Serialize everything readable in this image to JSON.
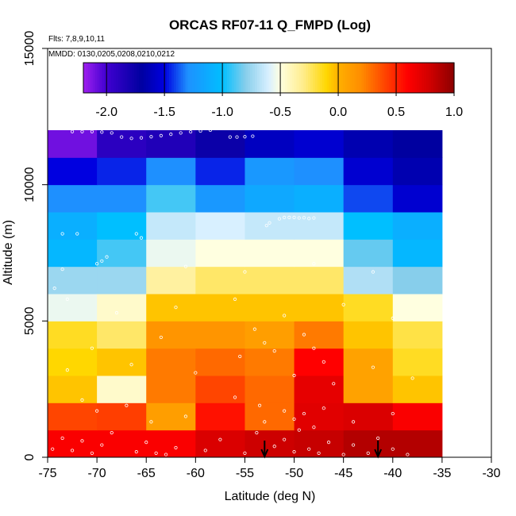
{
  "chart_data": {
    "type": "heatmap",
    "title": "ORCAS RF07-11 Q_FMPD (Log)",
    "flights_note": "Flts: 7,8,9,10,11",
    "dates_note": "MMDD: 0130,0205,0208,0210,0212",
    "xlabel": "Latitude (deg N)",
    "ylabel": "Altitude (m)",
    "xlim": [
      -75,
      -30
    ],
    "ylim": [
      0,
      15000
    ],
    "x_ticks": [
      -75,
      -70,
      -65,
      -60,
      -55,
      -50,
      -45,
      -40,
      -35,
      -30
    ],
    "x_tick_labels": [
      "-75",
      "-70",
      "-65",
      "-60",
      "-55",
      "-50",
      "-45",
      "-40",
      "-35",
      "-30"
    ],
    "y_ticks": [
      0,
      5000,
      10000,
      15000
    ],
    "y_tick_labels": [
      "0",
      "5000",
      "10000",
      "15000"
    ],
    "colorbar": {
      "min": -2.2,
      "max": 1.0,
      "ticks": [
        -2.0,
        -1.5,
        -1.0,
        -0.5,
        0.0,
        0.5,
        1.0
      ],
      "tick_labels": [
        "-2.0",
        "-1.5",
        "-1.0",
        "-0.5",
        "0.0",
        "0.5",
        "1.0"
      ],
      "color_stops": [
        {
          "v": -2.2,
          "c": "#a020f0"
        },
        {
          "v": -2.0,
          "c": "#4000d0"
        },
        {
          "v": -1.7,
          "c": "#0000a0"
        },
        {
          "v": -1.5,
          "c": "#0000e0"
        },
        {
          "v": -1.3,
          "c": "#1e90ff"
        },
        {
          "v": -1.0,
          "c": "#00bfff"
        },
        {
          "v": -0.8,
          "c": "#87ceeb"
        },
        {
          "v": -0.6,
          "c": "#d8f0ff"
        },
        {
          "v": -0.5,
          "c": "#ffffe0"
        },
        {
          "v": -0.3,
          "c": "#ffec8b"
        },
        {
          "v": -0.1,
          "c": "#ffd700"
        },
        {
          "v": 0.0,
          "c": "#ffb000"
        },
        {
          "v": 0.2,
          "c": "#ff8c00"
        },
        {
          "v": 0.4,
          "c": "#ff4500"
        },
        {
          "v": 0.6,
          "c": "#ff0000"
        },
        {
          "v": 0.8,
          "c": "#cd0000"
        },
        {
          "v": 1.0,
          "c": "#8b0000"
        }
      ]
    },
    "lat_bins": [
      -75,
      -70,
      -65,
      -60,
      -55,
      -50,
      -45,
      -40,
      -35
    ],
    "alt_bins": [
      0,
      1000,
      2000,
      3000,
      4000,
      5000,
      6000,
      7000,
      8000,
      9000,
      10000,
      11000,
      12000
    ],
    "cells": [
      [
        0.62,
        0.62,
        0.62,
        0.75,
        0.8,
        0.82,
        0.88,
        0.88
      ],
      [
        0.4,
        0.42,
        0.1,
        0.55,
        0.3,
        0.72,
        0.75,
        0.62
      ],
      [
        -0.05,
        -0.45,
        0.25,
        0.4,
        0.3,
        0.7,
        0.08,
        -0.05
      ],
      [
        -0.1,
        -0.05,
        0.25,
        0.3,
        0.25,
        0.6,
        0.08,
        -0.15
      ],
      [
        -0.15,
        -0.25,
        0.15,
        0.15,
        0.1,
        0.25,
        -0.05,
        -0.2
      ],
      [
        -0.55,
        -0.45,
        -0.05,
        -0.05,
        -0.05,
        -0.05,
        -0.15,
        -0.5
      ],
      [
        -0.75,
        -0.75,
        -0.35,
        -0.25,
        -0.25,
        -0.25,
        -0.7,
        -0.8
      ],
      [
        -1.05,
        -0.9,
        -0.55,
        -0.5,
        -0.5,
        -0.5,
        -0.85,
        -1.05
      ],
      [
        -1.1,
        -1.0,
        -0.65,
        -0.6,
        -0.65,
        -0.65,
        -1.0,
        -1.1
      ],
      [
        -1.3,
        -1.3,
        -0.9,
        -1.25,
        -1.15,
        -1.1,
        -1.4,
        -1.55
      ],
      [
        -1.5,
        -1.45,
        -1.3,
        -1.45,
        -1.25,
        -1.3,
        -1.55,
        -1.65
      ],
      [
        -2.1,
        -1.9,
        -1.85,
        -1.75,
        -1.6,
        -1.55,
        -1.65,
        -1.7
      ]
    ],
    "arrows_lat": [
      -53,
      -41.5
    ],
    "flight_track": [
      [
        -72.5,
        11950
      ],
      [
        -71.5,
        11950
      ],
      [
        -70.5,
        11950
      ],
      [
        -69.5,
        11930
      ],
      [
        -68.5,
        11900
      ],
      [
        -67.5,
        11750
      ],
      [
        -66.5,
        11700
      ],
      [
        -65.5,
        11720
      ],
      [
        -64.5,
        11760
      ],
      [
        -63.5,
        11800
      ],
      [
        -62.5,
        11850
      ],
      [
        -61.5,
        11900
      ],
      [
        -60.5,
        11940
      ],
      [
        -59.5,
        11970
      ],
      [
        -58.5,
        12000
      ],
      [
        -56.5,
        11750
      ],
      [
        -55.8,
        11750
      ],
      [
        -55,
        11760
      ],
      [
        -54.2,
        11780
      ],
      [
        -51.5,
        8750
      ],
      [
        -51,
        8800
      ],
      [
        -50.5,
        8800
      ],
      [
        -50,
        8800
      ],
      [
        -49.5,
        8780
      ],
      [
        -49,
        8790
      ],
      [
        -48.5,
        8760
      ],
      [
        -48,
        8780
      ],
      [
        -52.5,
        8600
      ],
      [
        -52.8,
        8500
      ],
      [
        -72,
        8200
      ],
      [
        -73.5,
        8200
      ],
      [
        -66,
        8200
      ],
      [
        -65.5,
        8050
      ],
      [
        -70,
        7100
      ],
      [
        -69.5,
        7200
      ],
      [
        -69,
        7350
      ],
      [
        -74.3,
        6200
      ],
      [
        -73.5,
        6900
      ],
      [
        -61,
        7000
      ],
      [
        -55,
        6800
      ],
      [
        -48,
        7100
      ],
      [
        -42,
        6800
      ],
      [
        -73,
        5800
      ],
      [
        -68,
        5300
      ],
      [
        -62,
        5500
      ],
      [
        -56,
        5800
      ],
      [
        -51,
        5200
      ],
      [
        -45,
        5600
      ],
      [
        -40,
        5100
      ],
      [
        -70.5,
        4000
      ],
      [
        -63.5,
        4400
      ],
      [
        -54,
        4700
      ],
      [
        -53,
        4200
      ],
      [
        -52,
        3900
      ],
      [
        -49,
        4500
      ],
      [
        -48,
        4000
      ],
      [
        -47,
        3500
      ],
      [
        -73,
        3200
      ],
      [
        -66.5,
        3400
      ],
      [
        -60,
        3100
      ],
      [
        -55.5,
        3700
      ],
      [
        -50,
        3000
      ],
      [
        -46,
        2700
      ],
      [
        -42,
        3300
      ],
      [
        -38,
        2900
      ],
      [
        -71.5,
        2100
      ],
      [
        -70,
        1700
      ],
      [
        -67,
        1900
      ],
      [
        -64.5,
        1300
      ],
      [
        -61,
        1500
      ],
      [
        -56,
        2200
      ],
      [
        -53.5,
        1900
      ],
      [
        -51,
        1700
      ],
      [
        -50,
        1400
      ],
      [
        -49,
        1600
      ],
      [
        -48,
        1100
      ],
      [
        -47,
        1800
      ],
      [
        -44,
        1300
      ],
      [
        -40,
        1600
      ],
      [
        -74.5,
        300
      ],
      [
        -73.5,
        700
      ],
      [
        -72.5,
        250
      ],
      [
        -71.5,
        600
      ],
      [
        -70.5,
        150
      ],
      [
        -69.5,
        450
      ],
      [
        -68.5,
        900
      ],
      [
        -66,
        200
      ],
      [
        -65,
        550
      ],
      [
        -64,
        150
      ],
      [
        -63,
        100
      ],
      [
        -62,
        350
      ],
      [
        -59,
        250
      ],
      [
        -57.5,
        650
      ],
      [
        -55,
        150
      ],
      [
        -53.8,
        900
      ],
      [
        -53,
        1300
      ],
      [
        -52,
        400
      ],
      [
        -51,
        650
      ],
      [
        -50,
        200
      ],
      [
        -49.5,
        1000
      ],
      [
        -48.5,
        300
      ],
      [
        -47.5,
        150
      ],
      [
        -46.5,
        550
      ],
      [
        -45,
        100
      ],
      [
        -44,
        450
      ],
      [
        -42.5,
        150
      ],
      [
        -41.5,
        700
      ],
      [
        -40,
        300
      ],
      [
        -38.5,
        100
      ]
    ]
  }
}
